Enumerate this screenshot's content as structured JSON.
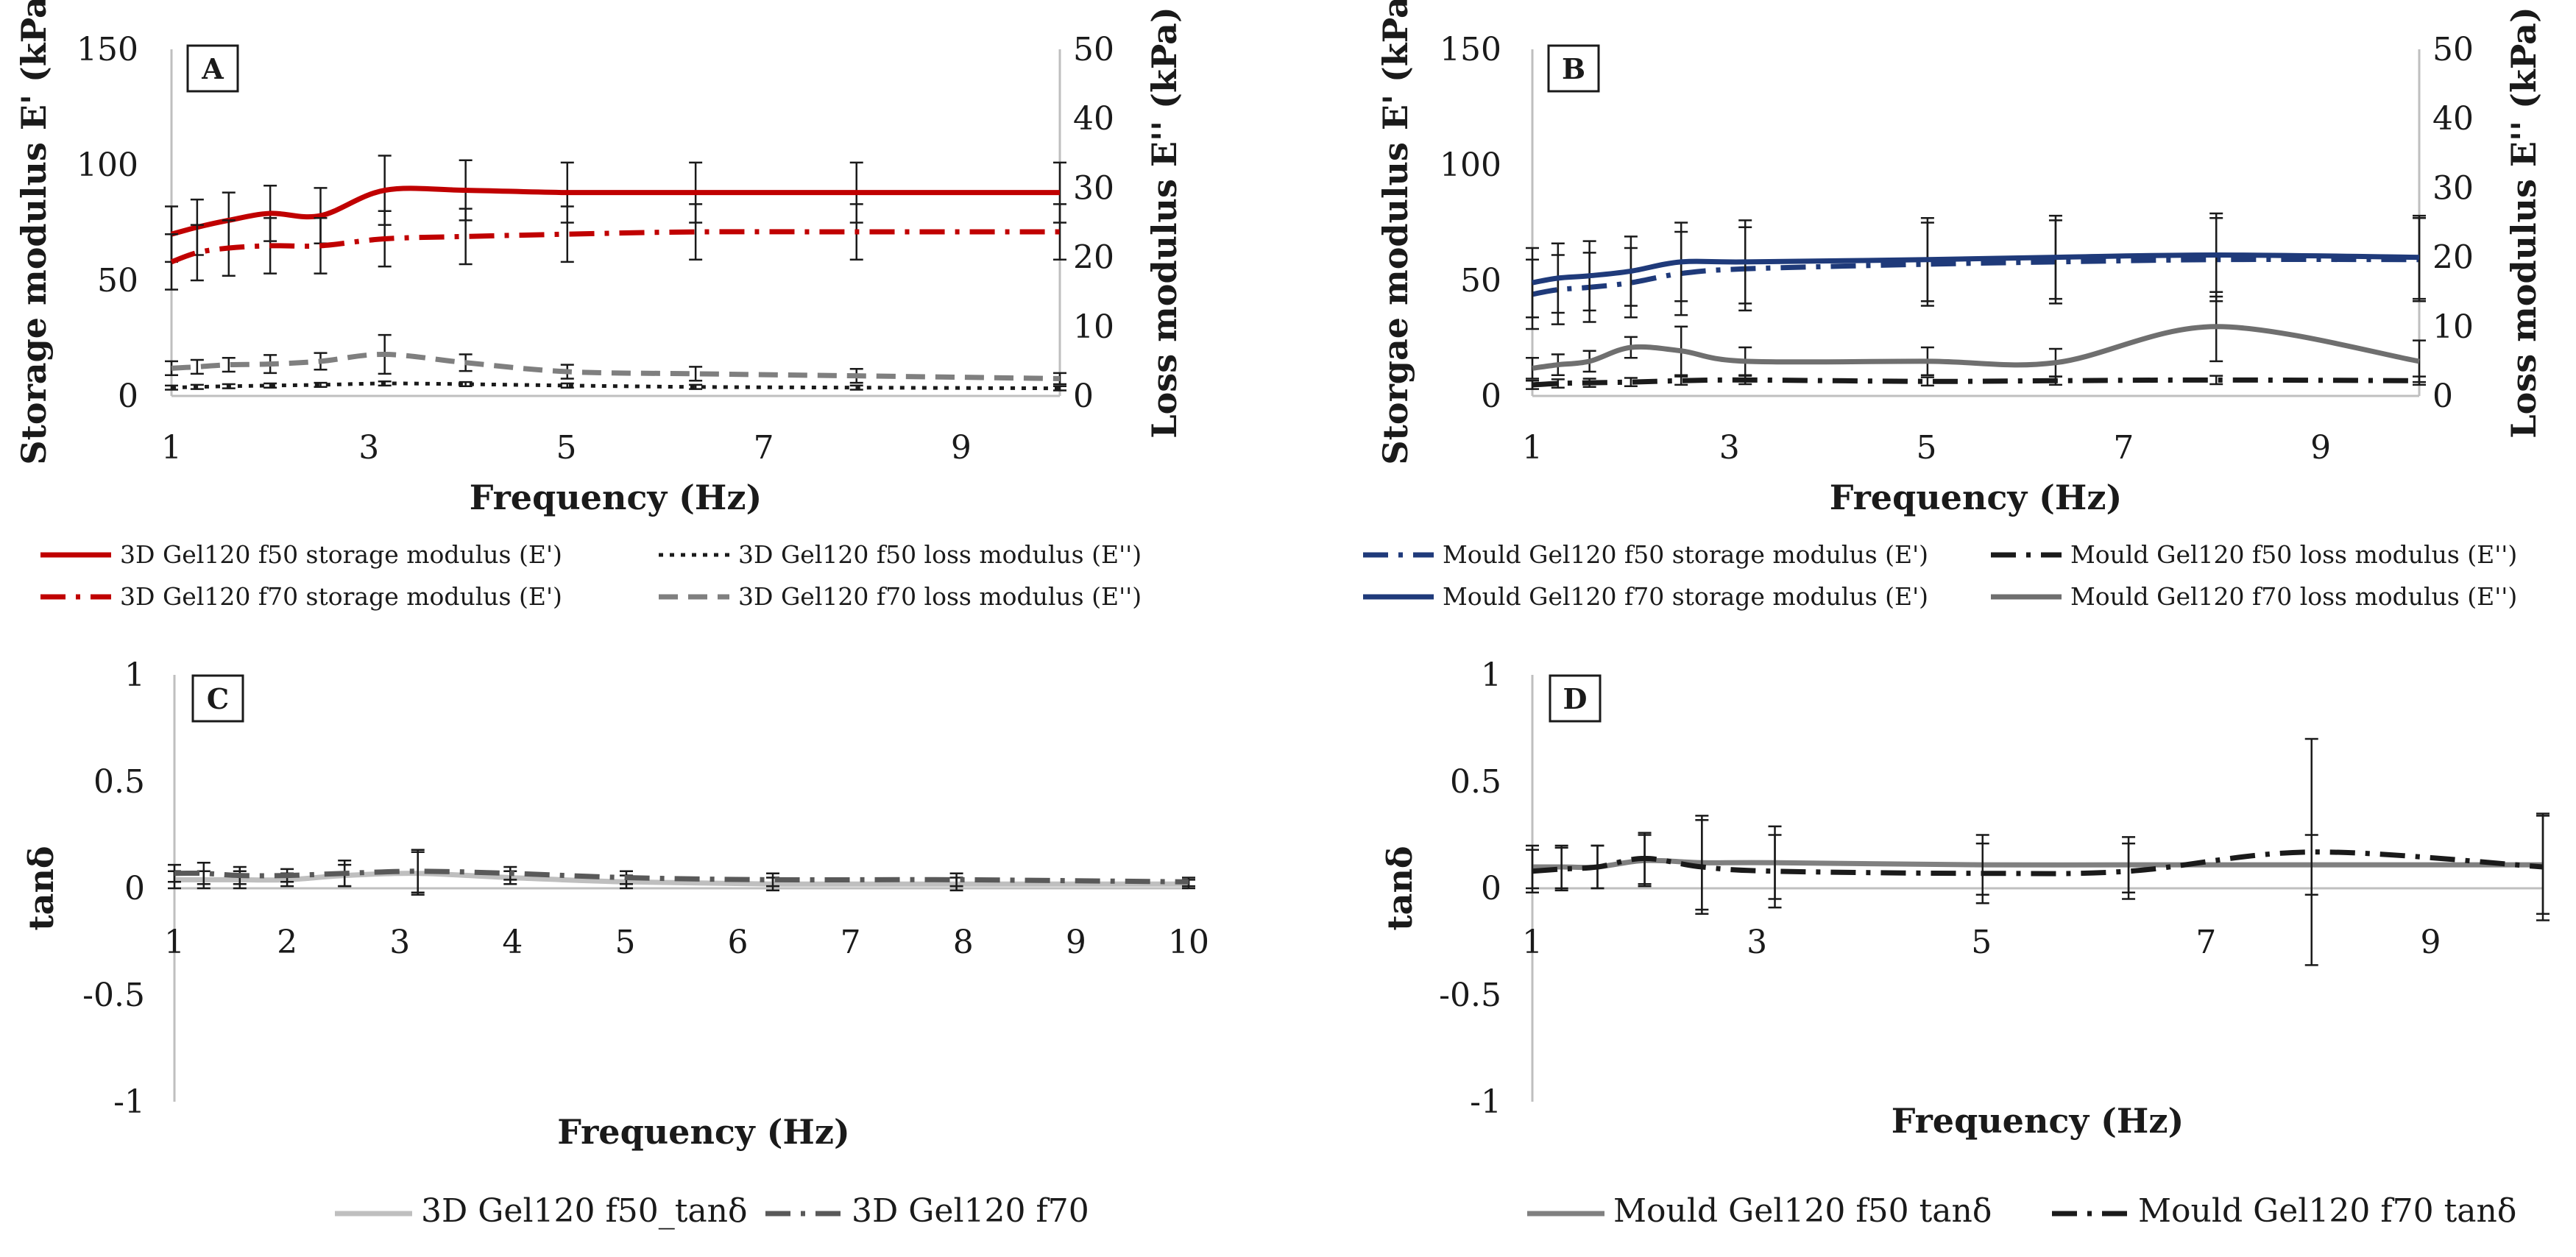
{
  "chart_data": [
    {
      "id": "A",
      "type": "line",
      "panel_label": "A",
      "xlabel": "Frequency (Hz)",
      "ylabel": "Storage modulus E' (kPa)",
      "y2label": "Loss modulus E'' (kPa)",
      "xlim": [
        1,
        10
      ],
      "ylim": [
        0,
        150
      ],
      "y2lim": [
        0,
        50
      ],
      "xticks": [
        "1",
        "3",
        "5",
        "7",
        "9"
      ],
      "yticks": [
        "0",
        "50",
        "100",
        "150"
      ],
      "y2ticks": [
        "0",
        "10",
        "20",
        "30",
        "40",
        "50"
      ],
      "legend": [
        "3D Gel120 f50 storage modulus (E')",
        "3D Gel120 f50 loss modulus (E'')",
        "3D Gel120 f70 storage modulus (E')",
        "3D Gel120 f70 loss modulus (E'')"
      ],
      "series": [
        {
          "name": "3D Gel120 f50 storage modulus (E')",
          "axis": "left",
          "color": "#c00000",
          "style": "solid",
          "x": [
            1,
            1.26,
            1.58,
            2,
            2.51,
            3.16,
            3.98,
            5.01,
            6.31,
            7.94,
            10
          ],
          "y": [
            70,
            73,
            76,
            79,
            78,
            89,
            89,
            88,
            88,
            88,
            88
          ],
          "err": [
            12,
            12,
            12,
            12,
            12,
            15,
            13,
            13,
            13,
            13,
            13
          ]
        },
        {
          "name": "3D Gel120 f70 storage modulus (E')",
          "axis": "left",
          "color": "#c00000",
          "style": "dashdot",
          "x": [
            1,
            1.26,
            1.58,
            2,
            2.51,
            3.16,
            3.98,
            5.01,
            6.31,
            7.94,
            10
          ],
          "y": [
            58,
            62,
            64,
            65,
            65,
            68,
            69,
            70,
            71,
            71,
            71
          ],
          "err": [
            12,
            12,
            12,
            12,
            12,
            12,
            12,
            12,
            12,
            12,
            12
          ]
        },
        {
          "name": "3D Gel120 f50 loss modulus (E'')",
          "axis": "right",
          "color": "#1a1a1a",
          "style": "dotted",
          "x": [
            1,
            1.26,
            1.58,
            2,
            2.51,
            3.16,
            3.98,
            5.01,
            6.31,
            7.94,
            10
          ],
          "y": [
            1.2,
            1.3,
            1.4,
            1.5,
            1.6,
            1.8,
            1.7,
            1.5,
            1.3,
            1.2,
            1.1
          ],
          "err": [
            0.3,
            0.3,
            0.3,
            0.3,
            0.3,
            0.3,
            0.3,
            0.3,
            0.3,
            0.3,
            0.3
          ]
        },
        {
          "name": "3D Gel120 f70 loss modulus (E'')",
          "axis": "right",
          "color": "#7f7f7f",
          "style": "dashed",
          "x": [
            1,
            1.26,
            1.58,
            2,
            2.51,
            3.16,
            3.98,
            5.01,
            6.31,
            7.94,
            10
          ],
          "y": [
            4,
            4.2,
            4.5,
            4.6,
            5,
            6,
            4.8,
            3.5,
            3.2,
            2.9,
            2.5
          ],
          "err": [
            1,
            1,
            1,
            1.3,
            1.2,
            2.8,
            1.2,
            1,
            1,
            1,
            0.8
          ]
        }
      ]
    },
    {
      "id": "B",
      "type": "line",
      "panel_label": "B",
      "xlabel": "Frequency (Hz)",
      "ylabel": "Storgae modulus E' (kPa)",
      "y2label": "Loss modulus E'' (kPa)",
      "xlim": [
        1,
        10
      ],
      "ylim": [
        0,
        150
      ],
      "y2lim": [
        0,
        50
      ],
      "xticks": [
        "1",
        "3",
        "5",
        "7",
        "9"
      ],
      "yticks": [
        "0",
        "50",
        "100",
        "150"
      ],
      "y2ticks": [
        "0",
        "10",
        "20",
        "30",
        "40",
        "50"
      ],
      "legend": [
        "Mould Gel120 f50 storage modulus (E')",
        "Mould Gel120 f50 loss modulus (E'')",
        "Mould Gel120 f70 storage modulus (E')",
        "Mould Gel120 f70 loss modulus (E'')"
      ],
      "series": [
        {
          "name": "Mould Gel120 f50 storage modulus (E')",
          "axis": "left",
          "color": "#1f3a7a",
          "style": "dashdot",
          "x": [
            1,
            1.26,
            1.58,
            2,
            2.51,
            3.16,
            5.01,
            6.31,
            7.94,
            10
          ],
          "y": [
            44,
            46,
            47,
            49,
            53,
            55,
            57,
            58,
            59,
            59
          ],
          "err": [
            15,
            15,
            15,
            15,
            18,
            18,
            18,
            18,
            18,
            18
          ]
        },
        {
          "name": "Mould Gel120 f70 storage modulus (E')",
          "axis": "left",
          "color": "#1f3a7a",
          "style": "solid",
          "x": [
            1,
            1.26,
            1.58,
            2,
            2.51,
            3.16,
            5.01,
            6.31,
            7.94,
            10
          ],
          "y": [
            49,
            51,
            52,
            54,
            58,
            58,
            59,
            60,
            61,
            60
          ],
          "err": [
            15,
            15,
            15,
            15,
            17,
            18,
            18,
            18,
            18,
            18
          ]
        },
        {
          "name": "Mould Gel120 f50 loss modulus (E'')",
          "axis": "right",
          "color": "#1a1a1a",
          "style": "dashdot",
          "x": [
            1,
            1.26,
            1.58,
            2,
            2.51,
            3.16,
            5.01,
            6.31,
            7.94,
            10
          ],
          "y": [
            1.6,
            1.8,
            1.9,
            2.0,
            2.2,
            2.3,
            2.1,
            2.2,
            2.3,
            2.2
          ],
          "err": [
            0.6,
            0.6,
            0.6,
            0.6,
            0.6,
            0.6,
            0.6,
            0.6,
            0.6,
            0.6
          ]
        },
        {
          "name": "Mould Gel120 f70 loss modulus (E'')",
          "axis": "right",
          "color": "#6f6f6f",
          "style": "solid",
          "x": [
            1,
            1.26,
            1.58,
            2,
            2.51,
            3.16,
            5.01,
            6.31,
            7.94,
            10
          ],
          "y": [
            4,
            4.5,
            5,
            7,
            6.5,
            5,
            5,
            4.8,
            10,
            5
          ],
          "err": [
            1.5,
            1.5,
            1.5,
            1.5,
            3.5,
            2,
            2,
            2,
            5,
            3
          ]
        }
      ]
    },
    {
      "id": "C",
      "type": "line",
      "panel_label": "C",
      "xlabel": "Frequency (Hz)",
      "ylabel": "tanδ",
      "xlim": [
        1,
        10
      ],
      "ylim": [
        -1,
        1
      ],
      "xticks": [
        "1",
        "2",
        "3",
        "4",
        "5",
        "6",
        "7",
        "8",
        "9",
        "10"
      ],
      "yticks": [
        "-1",
        "-0.5",
        "0",
        "0.5",
        "1"
      ],
      "legend": [
        "3D Gel120 f50_tanδ",
        "3D Gel120 f70"
      ],
      "series": [
        {
          "name": "3D Gel120 f50_tanδ",
          "color": "#bfbfbf",
          "style": "solid",
          "x": [
            1,
            1.26,
            1.58,
            2,
            2.51,
            3.16,
            3.98,
            5.01,
            6.31,
            7.94,
            10
          ],
          "y": [
            0.04,
            0.04,
            0.04,
            0.04,
            0.06,
            0.07,
            0.05,
            0.03,
            0.02,
            0.02,
            0.02
          ],
          "err": [
            0.04,
            0.04,
            0.04,
            0.03,
            0.05,
            0.1,
            0.03,
            0.03,
            0.03,
            0.03,
            0.02
          ]
        },
        {
          "name": "3D Gel120 f70",
          "color": "#595959",
          "style": "dashdot",
          "x": [
            1,
            1.26,
            1.58,
            2,
            2.51,
            3.16,
            3.98,
            5.01,
            6.31,
            7.94,
            10
          ],
          "y": [
            0.07,
            0.07,
            0.06,
            0.06,
            0.07,
            0.08,
            0.07,
            0.05,
            0.04,
            0.04,
            0.03
          ],
          "err": [
            0.04,
            0.05,
            0.04,
            0.03,
            0.06,
            0.1,
            0.03,
            0.03,
            0.03,
            0.03,
            0.02
          ]
        }
      ]
    },
    {
      "id": "D",
      "type": "line",
      "panel_label": "D",
      "xlabel": "Frequency (Hz)",
      "ylabel": "tanδ",
      "xlim": [
        1,
        10
      ],
      "ylim": [
        -1,
        1
      ],
      "xticks": [
        "1",
        "3",
        "5",
        "7",
        "9"
      ],
      "yticks": [
        "-1",
        "-0.5",
        "0",
        "0.5",
        "1"
      ],
      "legend": [
        "Mould Gel120 f50 tanδ",
        "Mould Gel120 f70 tanδ"
      ],
      "series": [
        {
          "name": "Mould Gel120 f50 tanδ",
          "color": "#808080",
          "style": "solid",
          "x": [
            1,
            1.26,
            1.58,
            2,
            2.51,
            3.16,
            5.01,
            6.31,
            7.94,
            10
          ],
          "y": [
            0.1,
            0.1,
            0.1,
            0.13,
            0.12,
            0.12,
            0.11,
            0.11,
            0.11,
            0.11
          ],
          "err": [
            0.1,
            0.1,
            0.1,
            0.12,
            0.22,
            0.17,
            0.14,
            0.13,
            0.14,
            0.23
          ]
        },
        {
          "name": "Mould Gel120 f70 tanδ",
          "color": "#1a1a1a",
          "style": "dashdot",
          "x": [
            1,
            1.26,
            1.58,
            2,
            2.51,
            3.16,
            5.01,
            6.31,
            7.94,
            10
          ],
          "y": [
            0.08,
            0.09,
            0.1,
            0.14,
            0.1,
            0.08,
            0.07,
            0.08,
            0.17,
            0.1
          ],
          "err": [
            0.1,
            0.1,
            0.1,
            0.12,
            0.22,
            0.17,
            0.14,
            0.13,
            0.53,
            0.25
          ]
        }
      ]
    }
  ]
}
